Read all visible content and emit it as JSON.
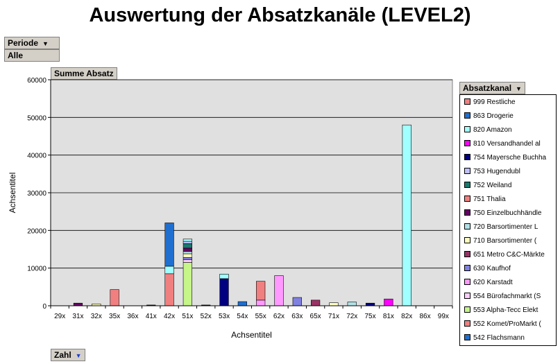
{
  "title": "Auswertung der Absatzkanäle (LEVEL2)",
  "filter": {
    "field_label": "Periode",
    "value": "Alle"
  },
  "data_field": {
    "label": "Summe Absatz"
  },
  "series_field": {
    "label": "Absatzkanal"
  },
  "category_field": {
    "label": "Zahl"
  },
  "chart_data": {
    "type": "bar",
    "stacked": true,
    "xlabel": "Achsentitel",
    "ylabel": "Achsentitel",
    "ylim": [
      0,
      60000
    ],
    "yticks": [
      0,
      10000,
      20000,
      30000,
      40000,
      50000,
      60000
    ],
    "ytick_labels": [
      "0",
      "10000",
      "20000",
      "30000",
      "40000",
      "50000",
      "60000"
    ],
    "grid": true,
    "legend_position": "right",
    "categories": [
      "29x",
      "31x",
      "32x",
      "35x",
      "36x",
      "41x",
      "42x",
      "51x",
      "52x",
      "53x",
      "54x",
      "55x",
      "62x",
      "63x",
      "65x",
      "71x",
      "72x",
      "75x",
      "81x",
      "82x",
      "86x",
      "99x"
    ],
    "series": [
      {
        "name": "542 Flachsmann",
        "color": "#1f6fd0",
        "values": [
          0,
          0,
          0,
          0,
          0,
          0,
          0,
          0,
          0,
          0,
          1100,
          0,
          0,
          0,
          0,
          0,
          0,
          0,
          0,
          0,
          0,
          0
        ]
      },
      {
        "name": "552 Komet/ProMarkt (",
        "color": "#f08080",
        "values": [
          0,
          0,
          0,
          0,
          0,
          0,
          0,
          0,
          0,
          0,
          0,
          0,
          0,
          0,
          0,
          0,
          0,
          0,
          0,
          0,
          0,
          0
        ]
      },
      {
        "name": "553 Alpha-Tecc Elekt",
        "color": "#c6f58a",
        "values": [
          0,
          0,
          0,
          0,
          0,
          0,
          0,
          11500,
          0,
          0,
          0,
          0,
          0,
          0,
          0,
          0,
          0,
          0,
          0,
          0,
          0,
          0
        ]
      },
      {
        "name": "554 Bürofachmarkt (S",
        "color": "#ffccff",
        "values": [
          0,
          0,
          0,
          0,
          0,
          0,
          0,
          700,
          0,
          0,
          0,
          0,
          0,
          0,
          0,
          0,
          0,
          0,
          0,
          0,
          0,
          0
        ]
      },
      {
        "name": "620 Karstadt",
        "color": "#ff99ff",
        "values": [
          0,
          0,
          0,
          0,
          0,
          0,
          0,
          0,
          0,
          0,
          0,
          1500,
          8000,
          0,
          0,
          0,
          0,
          0,
          0,
          0,
          0,
          0
        ]
      },
      {
        "name": "630 Kaufhof",
        "color": "#8080e0",
        "values": [
          0,
          0,
          0,
          0,
          0,
          0,
          0,
          600,
          0,
          0,
          0,
          0,
          0,
          2200,
          0,
          0,
          0,
          0,
          0,
          0,
          0,
          0
        ]
      },
      {
        "name": "651 Metro C&C-Märkte",
        "color": "#993366",
        "values": [
          0,
          0,
          0,
          0,
          0,
          0,
          0,
          0,
          0,
          0,
          0,
          0,
          0,
          0,
          1500,
          0,
          0,
          0,
          0,
          0,
          0,
          0
        ]
      },
      {
        "name": "710 Barsortimenter (",
        "color": "#ffffc0",
        "values": [
          0,
          0,
          500,
          0,
          0,
          0,
          0,
          1000,
          0,
          0,
          0,
          0,
          0,
          0,
          0,
          800,
          0,
          0,
          0,
          0,
          0,
          0
        ]
      },
      {
        "name": "720 Barsortimenter L",
        "color": "#b0e0e6",
        "values": [
          0,
          0,
          0,
          0,
          0,
          0,
          0,
          600,
          0,
          0,
          0,
          0,
          0,
          0,
          0,
          0,
          1000,
          0,
          0,
          0,
          0,
          0
        ]
      },
      {
        "name": "750 Einzelbuchhändle",
        "color": "#660066",
        "values": [
          0,
          700,
          0,
          0,
          0,
          0,
          0,
          900,
          0,
          0,
          0,
          0,
          0,
          0,
          0,
          0,
          0,
          0,
          0,
          0,
          0,
          0
        ]
      },
      {
        "name": "751 Thalia",
        "color": "#f08080",
        "values": [
          0,
          0,
          0,
          4300,
          0,
          0,
          8500,
          0,
          0,
          0,
          0,
          5000,
          0,
          0,
          0,
          0,
          0,
          0,
          0,
          0,
          0,
          0
        ]
      },
      {
        "name": "752 Weiland",
        "color": "#1a7a6e",
        "values": [
          0,
          0,
          0,
          0,
          0,
          0,
          0,
          1200,
          0,
          0,
          0,
          0,
          0,
          0,
          0,
          0,
          0,
          0,
          0,
          0,
          0,
          0
        ]
      },
      {
        "name": "753 Hugendubl",
        "color": "#c0c0ff",
        "values": [
          0,
          0,
          0,
          0,
          0,
          0,
          0,
          600,
          0,
          0,
          0,
          0,
          0,
          0,
          0,
          0,
          0,
          0,
          0,
          0,
          0,
          0
        ]
      },
      {
        "name": "754 Mayersche Buchha",
        "color": "#000080",
        "values": [
          0,
          0,
          0,
          0,
          0,
          200,
          0,
          0,
          200,
          7200,
          0,
          0,
          0,
          0,
          0,
          0,
          0,
          700,
          0,
          0,
          0,
          0
        ]
      },
      {
        "name": "810 Versandhandel al",
        "color": "#ff00ff",
        "values": [
          0,
          0,
          0,
          0,
          0,
          0,
          0,
          0,
          0,
          0,
          0,
          0,
          0,
          0,
          0,
          0,
          0,
          0,
          1800,
          0,
          0,
          0
        ]
      },
      {
        "name": "820 Amazon",
        "color": "#a0ffff",
        "values": [
          0,
          0,
          0,
          0,
          0,
          0,
          2000,
          600,
          0,
          1200,
          0,
          0,
          0,
          0,
          0,
          0,
          0,
          0,
          0,
          48000,
          0,
          0
        ]
      },
      {
        "name": "863 Drogerie",
        "color": "#1f6fd0",
        "values": [
          0,
          0,
          0,
          0,
          0,
          0,
          11500,
          0,
          0,
          0,
          0,
          0,
          0,
          0,
          0,
          0,
          0,
          0,
          0,
          0,
          0,
          0
        ]
      },
      {
        "name": "999 Restliche",
        "color": "#f08080",
        "values": [
          0,
          0,
          0,
          0,
          0,
          0,
          0,
          0,
          0,
          0,
          0,
          0,
          0,
          0,
          0,
          0,
          0,
          0,
          0,
          0,
          0,
          0
        ]
      }
    ],
    "legend_entries": [
      "999 Restliche",
      "863 Drogerie",
      "820 Amazon",
      "810 Versandhandel al",
      "754 Mayersche Buchha",
      "753 Hugendubl",
      "752 Weiland",
      "751 Thalia",
      "750 Einzelbuchhändle",
      "720 Barsortimenter L",
      "710 Barsortimenter (",
      "651 Metro C&C-Märkte",
      "630 Kaufhof",
      "620 Karstadt",
      "554 Bürofachmarkt (S",
      "553 Alpha-Tecc Elekt",
      "552 Komet/ProMarkt (",
      "542 Flachsmann"
    ]
  }
}
